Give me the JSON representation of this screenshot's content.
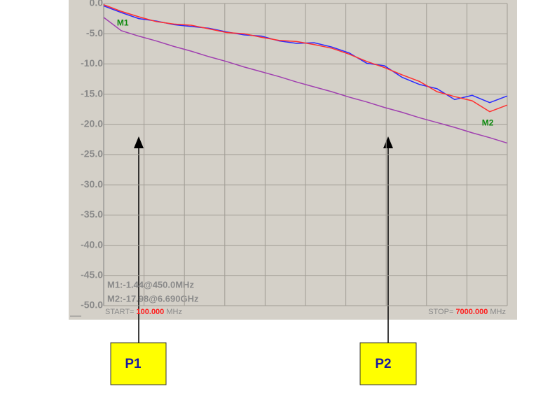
{
  "chart_data": {
    "type": "line",
    "x": [
      100,
      400,
      700,
      1000,
      1300,
      1600,
      1900,
      2200,
      2500,
      2800,
      3100,
      3400,
      3700,
      4000,
      4300,
      4600,
      4900,
      5200,
      5500,
      5800,
      6100,
      6400,
      6700,
      7000
    ],
    "series": [
      {
        "color": "#2a2aff",
        "values": [
          -0.4,
          -1.5,
          -2.5,
          -2.9,
          -3.5,
          -3.8,
          -4.1,
          -4.7,
          -5.2,
          -5.4,
          -6.2,
          -6.6,
          -6.5,
          -7.2,
          -8.2,
          -9.9,
          -10.3,
          -12.2,
          -13.4,
          -14.1,
          -15.9,
          -15.2,
          -16.4,
          -15.3
        ]
      },
      {
        "color": "#ff3030",
        "values": [
          -0.2,
          -1.3,
          -2.2,
          -3.0,
          -3.4,
          -3.6,
          -4.2,
          -4.8,
          -5.0,
          -5.6,
          -6.1,
          -6.3,
          -6.8,
          -7.4,
          -8.4,
          -9.6,
          -10.6,
          -11.8,
          -12.9,
          -14.6,
          -15.4,
          -16.1,
          -17.9,
          -16.8
        ]
      },
      {
        "color": "#a040b0",
        "values": [
          -2.3,
          -4.5,
          -5.4,
          -6.2,
          -7.1,
          -7.9,
          -8.8,
          -9.6,
          -10.5,
          -11.3,
          -12.1,
          -13.0,
          -13.8,
          -14.6,
          -15.5,
          -16.3,
          -17.2,
          -18.0,
          -18.9,
          -19.7,
          -20.5,
          -21.4,
          -22.2,
          -23.1
        ]
      }
    ],
    "xlim": [
      100,
      7000
    ],
    "xticks": [
      100,
      790,
      1480,
      2170,
      2860,
      3550,
      4240,
      4930,
      5620,
      6310,
      7000
    ],
    "ylim": [
      -50,
      0
    ],
    "yticks": [
      {
        "value": 0,
        "label": "0.0"
      },
      {
        "value": -5,
        "label": "-5.0"
      },
      {
        "value": -10,
        "label": "-10.0"
      },
      {
        "value": -15,
        "label": "-15.0"
      },
      {
        "value": -20,
        "label": "-20.0"
      },
      {
        "value": -25,
        "label": "-25.0"
      },
      {
        "value": -30,
        "label": "-30.0"
      },
      {
        "value": -35,
        "label": "-35.0"
      },
      {
        "value": -40,
        "label": "-40.0"
      },
      {
        "value": -45,
        "label": "-45.0"
      },
      {
        "value": -50,
        "label": "-50.0"
      }
    ],
    "grid": true,
    "markers": [
      {
        "label": "M1",
        "x": 450,
        "y": -1.44
      },
      {
        "label": "M2",
        "x": 6690,
        "y": -17.98
      }
    ],
    "marker_readouts": [
      "M1:-1.44@450.0MHz",
      "M2:-17.98@6.690GHz"
    ],
    "start": [
      "START=",
      "100.000",
      "MHz"
    ],
    "stop": [
      "STOP=",
      "7000.000",
      "MHz"
    ],
    "callouts": [
      "P1",
      "P2"
    ]
  }
}
